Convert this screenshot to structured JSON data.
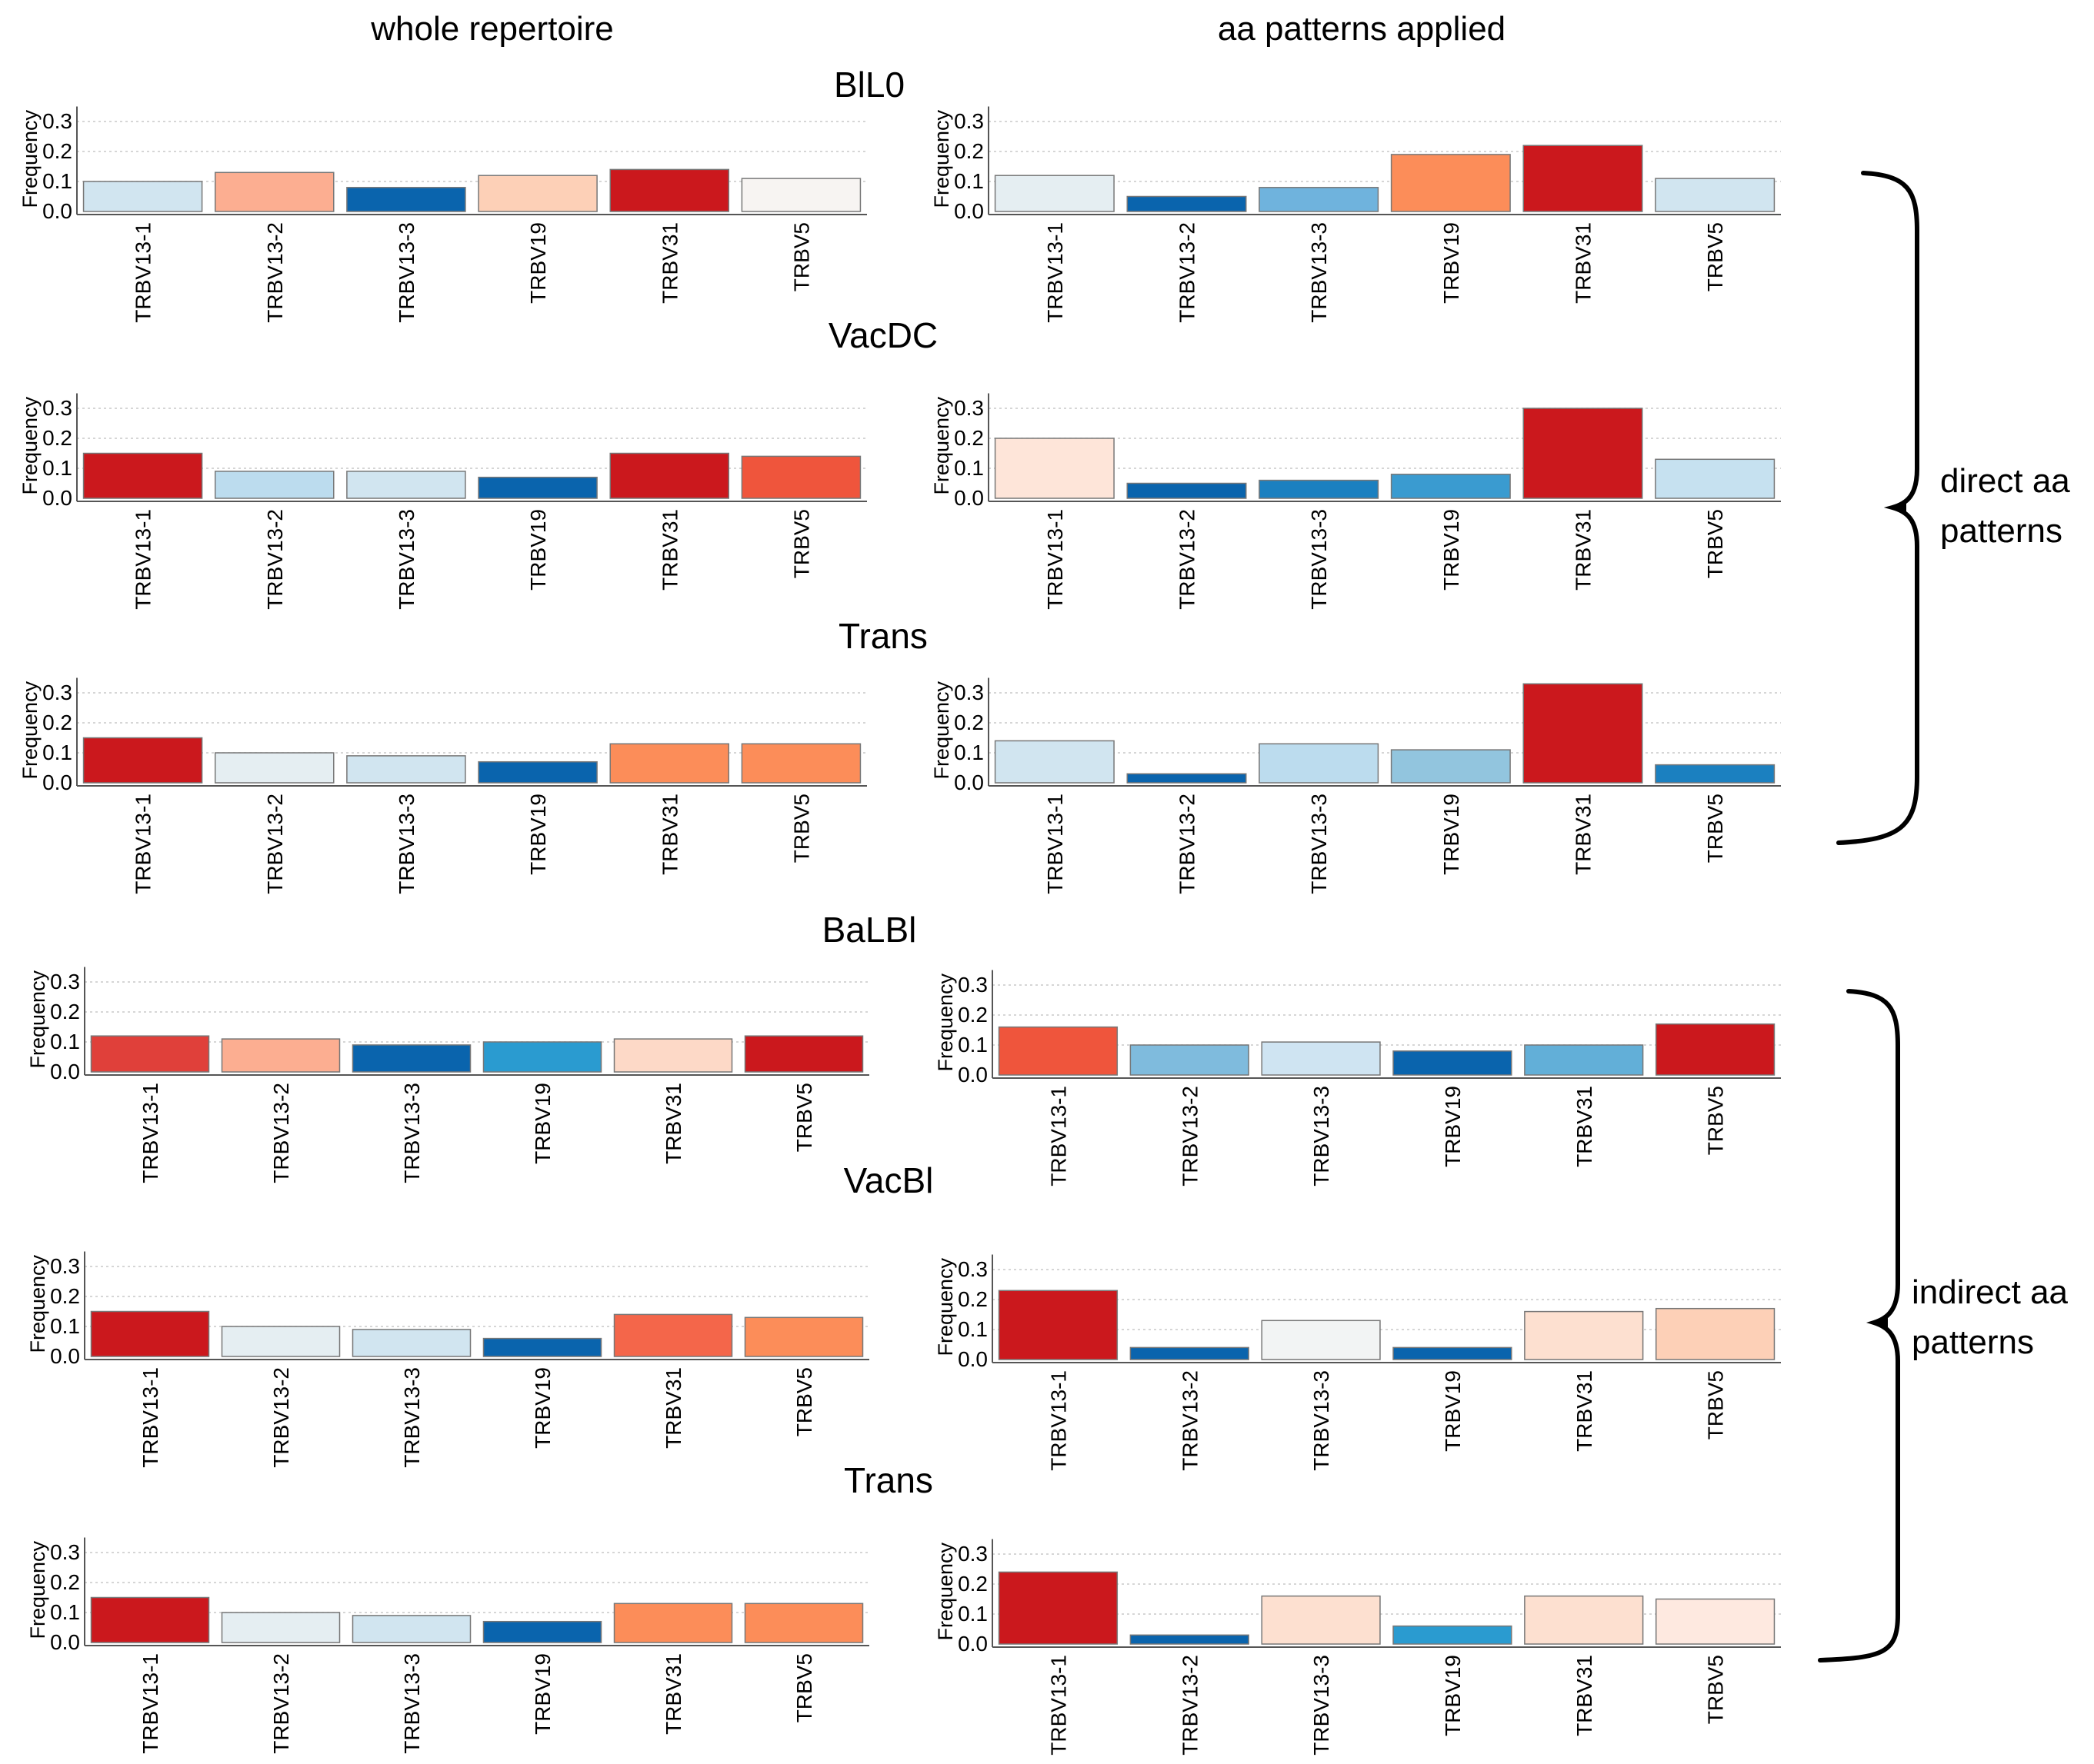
{
  "column_headers": {
    "left": "whole repertoire",
    "right": "aa patterns applied"
  },
  "group_titles": [
    "BlL0",
    "VacDC",
    "Trans",
    "BaLBl",
    "VacBl",
    "Trans"
  ],
  "brace_labels": {
    "direct": [
      "direct aa",
      "patterns"
    ],
    "indirect": [
      "indirect aa",
      "patterns"
    ]
  },
  "colors": {
    "deep_red": "#cb181d",
    "red": "#ef3b2c",
    "salmon": "#fc8d59",
    "light_salmon": "#fcae91",
    "peach": "#fdd0b7",
    "pale_peach": "#fee5d9",
    "off_white": "#f7f4f2",
    "pale_gray_blue": "#e5eef2",
    "pale_blue": "#d1e5f0",
    "light_blue": "#bcdcee",
    "sky_blue": "#92c5de",
    "mid_blue": "#4ba3d3",
    "cyan_blue": "#2a9bd0",
    "deep_blue": "#0a64ad"
  },
  "chart_data": [
    {
      "panel": "whole repertoire",
      "group": "BlL0",
      "type": "bar",
      "title": "BlL0",
      "categories": [
        "TRBV13-1",
        "TRBV13-2",
        "TRBV13-3",
        "TRBV19",
        "TRBV31",
        "TRBV5"
      ],
      "values": [
        0.1,
        0.13,
        0.08,
        0.12,
        0.14,
        0.11
      ],
      "bar_colors": [
        "#d1e5f0",
        "#fcae91",
        "#0a64ad",
        "#fdd0b7",
        "#cb181d",
        "#f7f4f2"
      ],
      "ylabel": "Frequency",
      "ylim": [
        0,
        0.35
      ],
      "yticks": [
        "0.0",
        "0.1",
        "0.2",
        "0.3"
      ]
    },
    {
      "panel": "aa patterns applied",
      "group": "BlL0",
      "type": "bar",
      "title": "",
      "categories": [
        "TRBV13-1",
        "TRBV13-2",
        "TRBV13-3",
        "TRBV19",
        "TRBV31",
        "TRBV5"
      ],
      "values": [
        0.12,
        0.05,
        0.08,
        0.19,
        0.22,
        0.11
      ],
      "bar_colors": [
        "#e5eef2",
        "#0a64ad",
        "#6fb3dd",
        "#fc8d59",
        "#cb181d",
        "#d1e5f0"
      ],
      "ylabel": "Frequency",
      "ylim": [
        0,
        0.35
      ],
      "yticks": [
        "0.0",
        "0.1",
        "0.2",
        "0.3"
      ]
    },
    {
      "panel": "whole repertoire",
      "group": "VacDC",
      "type": "bar",
      "title": "VacDC",
      "categories": [
        "TRBV13-1",
        "TRBV13-2",
        "TRBV13-3",
        "TRBV19",
        "TRBV31",
        "TRBV5"
      ],
      "values": [
        0.15,
        0.09,
        0.09,
        0.07,
        0.15,
        0.14
      ],
      "bar_colors": [
        "#cb181d",
        "#bcdcee",
        "#d1e5f0",
        "#0a64ad",
        "#cb181d",
        "#ef553c"
      ],
      "ylabel": "Frequency",
      "ylim": [
        0,
        0.35
      ],
      "yticks": [
        "0.0",
        "0.1",
        "0.2",
        "0.3"
      ]
    },
    {
      "panel": "aa patterns applied",
      "group": "VacDC",
      "type": "bar",
      "title": "",
      "categories": [
        "TRBV13-1",
        "TRBV13-2",
        "TRBV13-3",
        "TRBV19",
        "TRBV31",
        "TRBV5"
      ],
      "values": [
        0.2,
        0.05,
        0.06,
        0.08,
        0.3,
        0.13
      ],
      "bar_colors": [
        "#fee5d9",
        "#0a64ad",
        "#1b80c0",
        "#3a9bd0",
        "#cb181d",
        "#c6e1f0"
      ],
      "ylabel": "Frequency",
      "ylim": [
        0,
        0.35
      ],
      "yticks": [
        "0.0",
        "0.1",
        "0.2",
        "0.3"
      ]
    },
    {
      "panel": "whole repertoire",
      "group": "Trans",
      "type": "bar",
      "title": "Trans",
      "categories": [
        "TRBV13-1",
        "TRBV13-2",
        "TRBV13-3",
        "TRBV19",
        "TRBV31",
        "TRBV5"
      ],
      "values": [
        0.15,
        0.1,
        0.09,
        0.07,
        0.13,
        0.13
      ],
      "bar_colors": [
        "#cb181d",
        "#e5eef2",
        "#d1e5f0",
        "#0a64ad",
        "#fc8d59",
        "#fc8d59"
      ],
      "ylabel": "Frequency",
      "ylim": [
        0,
        0.35
      ],
      "yticks": [
        "0.0",
        "0.1",
        "0.2",
        "0.3"
      ]
    },
    {
      "panel": "aa patterns applied",
      "group": "Trans",
      "type": "bar",
      "title": "",
      "categories": [
        "TRBV13-1",
        "TRBV13-2",
        "TRBV13-3",
        "TRBV19",
        "TRBV31",
        "TRBV5"
      ],
      "values": [
        0.14,
        0.03,
        0.13,
        0.11,
        0.33,
        0.06
      ],
      "bar_colors": [
        "#d1e5f0",
        "#0a64ad",
        "#bcdcee",
        "#92c5de",
        "#cb181d",
        "#1b80c0"
      ],
      "ylabel": "Frequency",
      "ylim": [
        0,
        0.35
      ],
      "yticks": [
        "0.0",
        "0.1",
        "0.2",
        "0.3"
      ]
    },
    {
      "panel": "whole repertoire",
      "group": "BaLBl",
      "type": "bar",
      "title": "BaLBl",
      "categories": [
        "TRBV13-1",
        "TRBV13-2",
        "TRBV13-3",
        "TRBV19",
        "TRBV31",
        "TRBV5"
      ],
      "values": [
        0.12,
        0.11,
        0.09,
        0.1,
        0.11,
        0.12
      ],
      "bar_colors": [
        "#e0403a",
        "#fcae91",
        "#0a64ad",
        "#2a9bd0",
        "#fdd9c7",
        "#cb181d"
      ],
      "ylabel": "Frequency",
      "ylim": [
        0,
        0.35
      ],
      "yticks": [
        "0.0",
        "0.1",
        "0.2",
        "0.3"
      ]
    },
    {
      "panel": "aa patterns applied",
      "group": "BaLBl",
      "type": "bar",
      "title": "",
      "categories": [
        "TRBV13-1",
        "TRBV13-2",
        "TRBV13-3",
        "TRBV19",
        "TRBV31",
        "TRBV5"
      ],
      "values": [
        0.16,
        0.1,
        0.11,
        0.08,
        0.1,
        0.17
      ],
      "bar_colors": [
        "#ef553c",
        "#7fbbdd",
        "#cfe4f2",
        "#0a64ad",
        "#62afd8",
        "#cb181d"
      ],
      "ylabel": "Frequency",
      "ylim": [
        0,
        0.35
      ],
      "yticks": [
        "0.0",
        "0.1",
        "0.2",
        "0.3"
      ]
    },
    {
      "panel": "whole repertoire",
      "group": "VacBl",
      "type": "bar",
      "title": "VacBl",
      "categories": [
        "TRBV13-1",
        "TRBV13-2",
        "TRBV13-3",
        "TRBV19",
        "TRBV31",
        "TRBV5"
      ],
      "values": [
        0.15,
        0.1,
        0.09,
        0.06,
        0.14,
        0.13
      ],
      "bar_colors": [
        "#cb181d",
        "#e5eef2",
        "#d1e5f0",
        "#0a64ad",
        "#f4664a",
        "#fc8d59"
      ],
      "ylabel": "Frequency",
      "ylim": [
        0,
        0.35
      ],
      "yticks": [
        "0.0",
        "0.1",
        "0.2",
        "0.3"
      ]
    },
    {
      "panel": "aa patterns applied",
      "group": "VacBl",
      "type": "bar",
      "title": "",
      "categories": [
        "TRBV13-1",
        "TRBV13-2",
        "TRBV13-3",
        "TRBV19",
        "TRBV31",
        "TRBV5"
      ],
      "values": [
        0.23,
        0.04,
        0.13,
        0.04,
        0.16,
        0.17
      ],
      "bar_colors": [
        "#cb181d",
        "#0a64ad",
        "#f2f4f4",
        "#0a64ad",
        "#fde0d0",
        "#fdd0b7"
      ],
      "ylabel": "Frequency",
      "ylim": [
        0,
        0.35
      ],
      "yticks": [
        "0.0",
        "0.1",
        "0.2",
        "0.3"
      ]
    },
    {
      "panel": "whole repertoire",
      "group": "Trans",
      "type": "bar",
      "title": "Trans",
      "categories": [
        "TRBV13-1",
        "TRBV13-2",
        "TRBV13-3",
        "TRBV19",
        "TRBV31",
        "TRBV5"
      ],
      "values": [
        0.15,
        0.1,
        0.09,
        0.07,
        0.13,
        0.13
      ],
      "bar_colors": [
        "#cb181d",
        "#e5eef2",
        "#d1e5f0",
        "#0a64ad",
        "#fc8d59",
        "#fc8d59"
      ],
      "ylabel": "Frequency",
      "ylim": [
        0,
        0.35
      ],
      "yticks": [
        "0.0",
        "0.1",
        "0.2",
        "0.3"
      ]
    },
    {
      "panel": "aa patterns applied",
      "group": "Trans",
      "type": "bar",
      "title": "",
      "categories": [
        "TRBV13-1",
        "TRBV13-2",
        "TRBV13-3",
        "TRBV19",
        "TRBV31",
        "TRBV5"
      ],
      "values": [
        0.24,
        0.03,
        0.16,
        0.06,
        0.16,
        0.15
      ],
      "bar_colors": [
        "#cb181d",
        "#0a64ad",
        "#fde0d0",
        "#2a9bd0",
        "#fde0d0",
        "#fee9e0"
      ],
      "ylabel": "Frequency",
      "ylim": [
        0,
        0.35
      ],
      "yticks": [
        "0.0",
        "0.1",
        "0.2",
        "0.3"
      ]
    }
  ]
}
